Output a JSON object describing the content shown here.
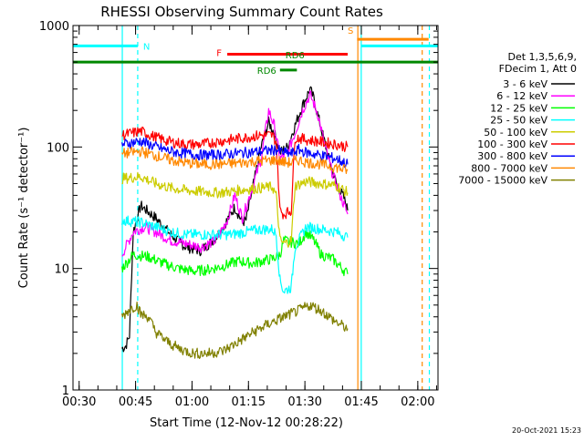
{
  "chart_data": {
    "type": "line",
    "title": "RHESSI Observing Summary Count Rates",
    "xlabel": "Start Time (12-Nov-12 00:28:22)",
    "ylabel": "Count Rate (s⁻¹ detector⁻¹)",
    "yscale": "log",
    "ylim": [
      1,
      1000
    ],
    "y_ticks": [
      1,
      10,
      100,
      1000
    ],
    "y_tick_labels": [
      "1",
      "10",
      "100",
      "1000"
    ],
    "x_units": "minutes after 00:28:22",
    "xlim": [
      0,
      97
    ],
    "x_ticks": [
      {
        "t": 1.63,
        "label": "00:30"
      },
      {
        "t": 16.63,
        "label": "00:45"
      },
      {
        "t": 31.63,
        "label": "01:00"
      },
      {
        "t": 46.63,
        "label": "01:15"
      },
      {
        "t": 61.63,
        "label": "01:30"
      },
      {
        "t": 76.63,
        "label": "01:45"
      },
      {
        "t": 91.63,
        "label": "02:00"
      }
    ],
    "legend_header": [
      "Det 1,3,5,6,9,",
      "FDecim 1, Att 0"
    ],
    "legend_placement": "right",
    "series": [
      {
        "name": "3 - 6 keV",
        "color": "#000000",
        "points": [
          [
            13,
            2.2
          ],
          [
            14,
            2.3
          ],
          [
            15,
            2.8
          ],
          [
            16,
            20
          ],
          [
            18,
            33
          ],
          [
            22,
            26
          ],
          [
            26,
            19
          ],
          [
            30,
            15
          ],
          [
            34,
            14
          ],
          [
            38,
            18
          ],
          [
            41,
            25
          ],
          [
            43,
            32
          ],
          [
            45,
            24
          ],
          [
            46,
            25
          ],
          [
            48,
            50
          ],
          [
            50,
            100
          ],
          [
            52,
            160
          ],
          [
            53.5,
            130
          ],
          [
            55,
            90
          ],
          [
            57,
            100
          ],
          [
            59,
            150
          ],
          [
            61,
            220
          ],
          [
            63,
            300
          ],
          [
            64,
            250
          ],
          [
            66,
            140
          ],
          [
            68,
            80
          ],
          [
            70,
            50
          ],
          [
            72,
            38
          ],
          [
            73,
            30
          ]
        ]
      },
      {
        "name": "6 - 12 keV",
        "color": "#ff00ff",
        "points": [
          [
            13,
            13
          ],
          [
            16,
            20
          ],
          [
            19,
            22
          ],
          [
            22,
            20
          ],
          [
            26,
            17
          ],
          [
            30,
            16
          ],
          [
            34,
            15
          ],
          [
            38,
            17
          ],
          [
            41,
            25
          ],
          [
            43,
            40
          ],
          [
            45,
            26
          ],
          [
            47,
            40
          ],
          [
            50,
            80
          ],
          [
            52,
            200
          ],
          [
            53.5,
            150
          ],
          [
            55,
            80
          ],
          [
            57,
            90
          ],
          [
            59,
            130
          ],
          [
            61,
            200
          ],
          [
            63,
            270
          ],
          [
            65,
            190
          ],
          [
            67,
            100
          ],
          [
            69,
            60
          ],
          [
            71,
            40
          ],
          [
            73,
            28
          ]
        ]
      },
      {
        "name": "12 - 25 keV",
        "color": "#00ff00",
        "points": [
          [
            13,
            10
          ],
          [
            16,
            13
          ],
          [
            20,
            12.5
          ],
          [
            24,
            11
          ],
          [
            28,
            10
          ],
          [
            32,
            9.5
          ],
          [
            36,
            9.8
          ],
          [
            40,
            10.5
          ],
          [
            44,
            11.5
          ],
          [
            48,
            11
          ],
          [
            50,
            11.5
          ],
          [
            53,
            12
          ],
          [
            55,
            13
          ],
          [
            56,
            17
          ],
          [
            60,
            16
          ],
          [
            62,
            20
          ],
          [
            64,
            17
          ],
          [
            66,
            13
          ],
          [
            69,
            12
          ],
          [
            73,
            9
          ]
        ]
      },
      {
        "name": "25 - 50 keV",
        "color": "#00ffff",
        "points": [
          [
            13,
            25
          ],
          [
            18,
            24
          ],
          [
            22,
            22
          ],
          [
            26,
            20
          ],
          [
            30,
            19
          ],
          [
            34,
            19
          ],
          [
            38,
            19
          ],
          [
            42,
            19
          ],
          [
            46,
            20
          ],
          [
            50,
            21
          ],
          [
            53,
            21
          ],
          [
            54,
            19
          ],
          [
            55,
            8
          ],
          [
            56,
            6.5
          ],
          [
            58,
            7
          ],
          [
            59,
            15
          ],
          [
            62,
            22
          ],
          [
            66,
            21
          ],
          [
            70,
            20
          ],
          [
            73,
            18
          ]
        ]
      },
      {
        "name": "50 - 100 keV",
        "color": "#cccc00",
        "points": [
          [
            13,
            55
          ],
          [
            18,
            57
          ],
          [
            22,
            50
          ],
          [
            26,
            46
          ],
          [
            30,
            44
          ],
          [
            34,
            43
          ],
          [
            38,
            42
          ],
          [
            42,
            43
          ],
          [
            46,
            45
          ],
          [
            50,
            46
          ],
          [
            53,
            47
          ],
          [
            54,
            40
          ],
          [
            55,
            17
          ],
          [
            56,
            16
          ],
          [
            58,
            17
          ],
          [
            59,
            48
          ],
          [
            62,
            52
          ],
          [
            66,
            50
          ],
          [
            70,
            48
          ],
          [
            73,
            42
          ]
        ]
      },
      {
        "name": "100 - 300 keV",
        "color": "#ff0000",
        "points": [
          [
            13,
            125
          ],
          [
            18,
            135
          ],
          [
            22,
            120
          ],
          [
            26,
            110
          ],
          [
            30,
            105
          ],
          [
            34,
            105
          ],
          [
            38,
            110
          ],
          [
            42,
            115
          ],
          [
            46,
            120
          ],
          [
            50,
            125
          ],
          [
            53,
            125
          ],
          [
            54,
            110
          ],
          [
            55,
            30
          ],
          [
            56,
            28
          ],
          [
            58,
            30
          ],
          [
            59,
            120
          ],
          [
            62,
            115
          ],
          [
            66,
            110
          ],
          [
            70,
            105
          ],
          [
            73,
            100
          ]
        ]
      },
      {
        "name": "300 - 800 keV",
        "color": "#0000ff",
        "points": [
          [
            13,
            105
          ],
          [
            18,
            112
          ],
          [
            22,
            100
          ],
          [
            26,
            92
          ],
          [
            30,
            88
          ],
          [
            34,
            86
          ],
          [
            38,
            86
          ],
          [
            42,
            88
          ],
          [
            46,
            90
          ],
          [
            50,
            92
          ],
          [
            54,
            95
          ],
          [
            56,
            90
          ],
          [
            58,
            88
          ],
          [
            60,
            95
          ],
          [
            62,
            90
          ],
          [
            66,
            85
          ],
          [
            70,
            80
          ],
          [
            73,
            72
          ]
        ]
      },
      {
        "name": "800 - 7000 keV",
        "color": "#ff8800",
        "points": [
          [
            13,
            88
          ],
          [
            18,
            92
          ],
          [
            22,
            85
          ],
          [
            26,
            78
          ],
          [
            30,
            74
          ],
          [
            34,
            72
          ],
          [
            38,
            72
          ],
          [
            42,
            73
          ],
          [
            46,
            75
          ],
          [
            50,
            77
          ],
          [
            54,
            78
          ],
          [
            56,
            75
          ],
          [
            58,
            74
          ],
          [
            60,
            78
          ],
          [
            62,
            75
          ],
          [
            66,
            72
          ],
          [
            70,
            68
          ],
          [
            73,
            64
          ]
        ]
      },
      {
        "name": "7000 - 15000 keV",
        "color": "#808000",
        "points": [
          [
            13,
            4
          ],
          [
            15,
            4.6
          ],
          [
            17,
            5
          ],
          [
            18,
            4.2
          ],
          [
            20,
            4
          ],
          [
            22,
            3
          ],
          [
            25,
            2.5
          ],
          [
            28,
            2.2
          ],
          [
            32,
            2
          ],
          [
            36,
            2
          ],
          [
            40,
            2.1
          ],
          [
            44,
            2.5
          ],
          [
            48,
            3
          ],
          [
            52,
            3.5
          ],
          [
            56,
            4
          ],
          [
            60,
            4.5
          ],
          [
            63,
            5
          ],
          [
            66,
            4.5
          ],
          [
            70,
            3.6
          ],
          [
            73,
            3.2
          ]
        ]
      }
    ],
    "annotations": [
      {
        "label": "N",
        "color": "#00ffff",
        "t_start": 0,
        "t_end": 17.2,
        "level": 680
      },
      {
        "label": "N",
        "color": "#00ffff",
        "t_start": 76.5,
        "t_end": 97,
        "level": 680
      },
      {
        "label": "S",
        "color": "#ff8800",
        "t_start": 75.5,
        "t_end": 94.5,
        "level": 770
      },
      {
        "label": "F",
        "color": "#ff0000",
        "t_start": 41,
        "t_end": 73,
        "level": 580
      },
      {
        "label": "RD6",
        "color": "#008800",
        "t_start": 0,
        "t_end": 97,
        "level": 500
      },
      {
        "label": "RD6",
        "color": "#008800",
        "t_start": 55,
        "t_end": 59.5,
        "level": 430
      }
    ],
    "vertical_markers": [
      {
        "t": 13.1,
        "color": "#00ffff",
        "style": "solid"
      },
      {
        "t": 17.2,
        "color": "#00ffff",
        "style": "dashed"
      },
      {
        "t": 75.7,
        "color": "#ff8800",
        "style": "solid"
      },
      {
        "t": 76.6,
        "color": "#00ffff",
        "style": "solid"
      },
      {
        "t": 92.8,
        "color": "#ff8800",
        "style": "dashed"
      },
      {
        "t": 94.7,
        "color": "#00ffff",
        "style": "dashed"
      }
    ]
  },
  "footer_timestamp": "20-Oct-2021 15:23"
}
